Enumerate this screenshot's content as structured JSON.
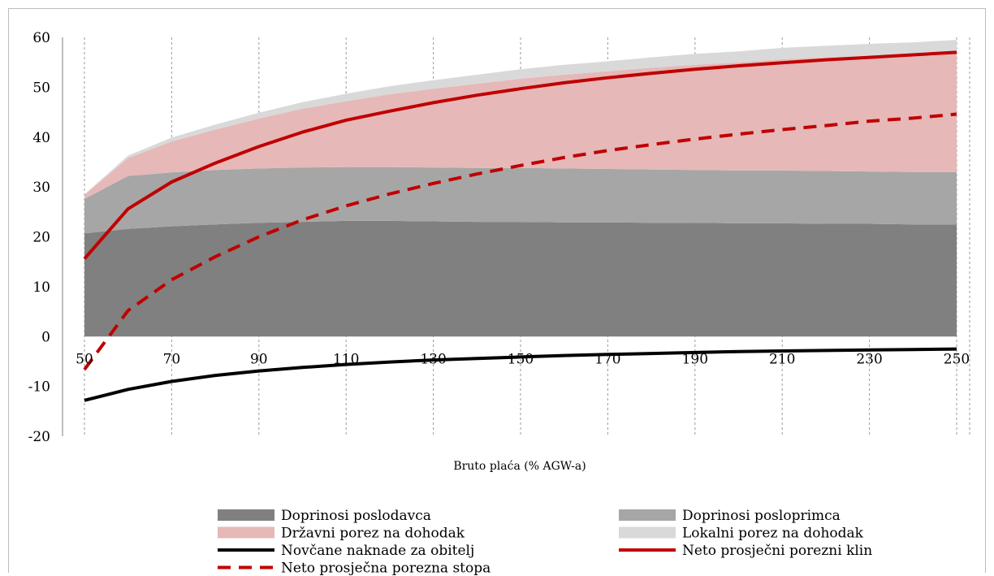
{
  "chart_data": {
    "type": "area",
    "title": "",
    "xlabel": "Bruto plaća (% AGW-a)",
    "ylabel": "",
    "x": [
      50,
      60,
      70,
      80,
      90,
      100,
      110,
      120,
      130,
      140,
      150,
      160,
      170,
      180,
      190,
      200,
      210,
      220,
      230,
      240,
      250
    ],
    "x_ticks": [
      "50",
      "70",
      "90",
      "110",
      "130",
      "150",
      "170",
      "190",
      "210",
      "230",
      "250"
    ],
    "y_ticks": [
      "60",
      "50",
      "40",
      "30",
      "20",
      "10",
      "0",
      "-10",
      "-20"
    ],
    "ylim": [
      -20,
      60
    ],
    "xlim": [
      50,
      250
    ],
    "grid": "vertical dashed",
    "legend_position": "bottom",
    "stacked_series": [
      {
        "name": "Doprinosi poslodavca",
        "color": "#808080",
        "values": [
          20.7,
          21.6,
          22.1,
          22.5,
          22.8,
          23.0,
          23.2,
          23.2,
          23.1,
          23.0,
          23.0,
          22.9,
          22.9,
          22.8,
          22.8,
          22.7,
          22.7,
          22.6,
          22.6,
          22.5,
          22.5
        ]
      },
      {
        "name": "Doprinosi posloprimca",
        "color": "#a6a6a6",
        "values": [
          6.9,
          10.6,
          10.8,
          10.9,
          10.9,
          10.9,
          10.8,
          10.8,
          10.8,
          10.8,
          10.8,
          10.8,
          10.7,
          10.7,
          10.6,
          10.6,
          10.6,
          10.6,
          10.5,
          10.5,
          10.5
        ]
      },
      {
        "name": "Državni porez na dohodak",
        "color": "#e6b8b8",
        "values": [
          0.8,
          3.6,
          6.2,
          8.1,
          10.0,
          11.8,
          13.2,
          14.6,
          15.8,
          16.9,
          17.9,
          18.8,
          19.6,
          20.4,
          21.1,
          21.7,
          22.3,
          22.8,
          23.2,
          23.6,
          24.0
        ]
      },
      {
        "name": "Lokalni porez na dohodak",
        "color": "#d9d9d9",
        "values": [
          0.1,
          0.5,
          0.8,
          1.0,
          1.2,
          1.3,
          1.5,
          1.6,
          1.7,
          1.8,
          1.9,
          2.0,
          2.0,
          2.1,
          2.2,
          2.2,
          2.3,
          2.3,
          2.4,
          2.4,
          2.5
        ]
      }
    ],
    "line_series": [
      {
        "name": "Novčane naknade za obitelj",
        "color": "#000000",
        "style": "solid",
        "values": [
          -12.8,
          -10.6,
          -9.0,
          -7.8,
          -6.9,
          -6.2,
          -5.6,
          -5.1,
          -4.7,
          -4.4,
          -4.1,
          -3.8,
          -3.6,
          -3.4,
          -3.2,
          -3.0,
          -2.9,
          -2.8,
          -2.7,
          -2.6,
          -2.5
        ]
      },
      {
        "name": "Neto prosječni porezni klin",
        "color": "#c00000",
        "style": "solid",
        "values": [
          15.6,
          25.6,
          31.0,
          34.8,
          38.1,
          41.0,
          43.4,
          45.2,
          46.9,
          48.4,
          49.7,
          50.9,
          51.9,
          52.8,
          53.6,
          54.3,
          54.9,
          55.5,
          56.0,
          56.5,
          57.0
        ]
      },
      {
        "name": "Neto prosječna porezna stopa",
        "color": "#c00000",
        "style": "dashed",
        "values": [
          -6.6,
          5.2,
          11.4,
          16.0,
          20.0,
          23.4,
          26.2,
          28.6,
          30.7,
          32.6,
          34.3,
          35.9,
          37.3,
          38.5,
          39.6,
          40.6,
          41.5,
          42.3,
          43.2,
          43.8,
          44.6
        ]
      }
    ]
  }
}
